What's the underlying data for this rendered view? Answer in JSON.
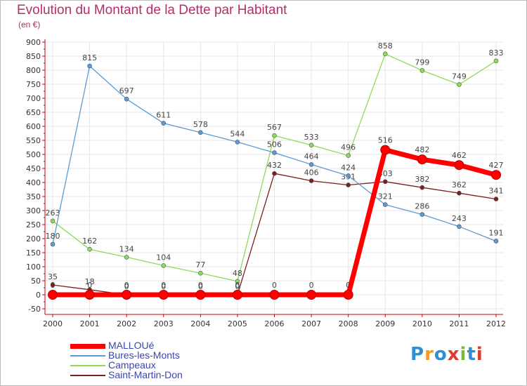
{
  "header": {
    "title": "Evolution du Montant de la Dette par Habitant",
    "subtitle": "(en €)"
  },
  "logo": {
    "text": "Proxiti",
    "colors": [
      "#2e8fd6",
      "#f39a1f",
      "#2e8fd6",
      "#e23a2c",
      "#7ab93a",
      "#2e8fd6",
      "#e23a2c"
    ]
  },
  "colors": {
    "title": "#b0306a",
    "axis": "#cc0000",
    "grid": "#e6e6e6",
    "tick_label": "#333333",
    "legend_text": "#3a45b0"
  },
  "chart_data": {
    "type": "line",
    "title": "Evolution du Montant de la Dette par Habitant",
    "subtitle": "(en €)",
    "xlabel": "",
    "ylabel": "",
    "x": [
      2000,
      2001,
      2002,
      2003,
      2004,
      2005,
      2006,
      2007,
      2008,
      2009,
      2010,
      2011,
      2012
    ],
    "ylim": [
      -50,
      900
    ],
    "yticks": [
      -50,
      0,
      50,
      100,
      150,
      200,
      250,
      300,
      350,
      400,
      450,
      500,
      550,
      600,
      650,
      700,
      750,
      800,
      850,
      900
    ],
    "grid": true,
    "legend": "bottom-left",
    "series": [
      {
        "name": "Saint-Martin-Don",
        "color": "#7a1f1f",
        "values": [
          35,
          18,
          0,
          0,
          0,
          0,
          432,
          406,
          391,
          403,
          382,
          362,
          341
        ],
        "labels": [
          "35",
          "18",
          "0",
          "0",
          "0",
          "0",
          "432",
          "406",
          "391",
          "403",
          "382",
          "362",
          "341"
        ]
      },
      {
        "name": "Campeaux",
        "color": "#8ddb5a",
        "values": [
          263,
          162,
          134,
          104,
          77,
          48,
          567,
          533,
          496,
          858,
          799,
          749,
          833
        ],
        "labels": [
          "263",
          "162",
          "134",
          "104",
          "77",
          "48",
          "567",
          "533",
          "496",
          "858",
          "799",
          "749",
          "833"
        ]
      },
      {
        "name": "Bures-les-Monts",
        "color": "#5b9bd5",
        "values": [
          180,
          815,
          697,
          611,
          578,
          544,
          506,
          464,
          424,
          321,
          286,
          243,
          191
        ],
        "labels": [
          "180",
          "815",
          "697",
          "611",
          "578",
          "544",
          "506",
          "464",
          "424",
          "321",
          "286",
          "243",
          "191"
        ]
      },
      {
        "name": "MALLOUé",
        "color": "#ff0000",
        "values": [
          0,
          0,
          0,
          0,
          0,
          0,
          0,
          0,
          0,
          516,
          482,
          462,
          427
        ],
        "labels": [
          "0",
          "0",
          "0",
          "0",
          "0",
          "0",
          "0",
          "0",
          "0",
          "516",
          "482",
          "462",
          "427"
        ]
      }
    ]
  },
  "legend_items": [
    {
      "label": "MALLOUé",
      "color": "#ff0000",
      "thick": true
    },
    {
      "label": "Bures-les-Monts",
      "color": "#5b9bd5",
      "thick": false
    },
    {
      "label": "Campeaux",
      "color": "#8ddb5a",
      "thick": false
    },
    {
      "label": "Saint-Martin-Don",
      "color": "#7a1f1f",
      "thick": false
    }
  ]
}
